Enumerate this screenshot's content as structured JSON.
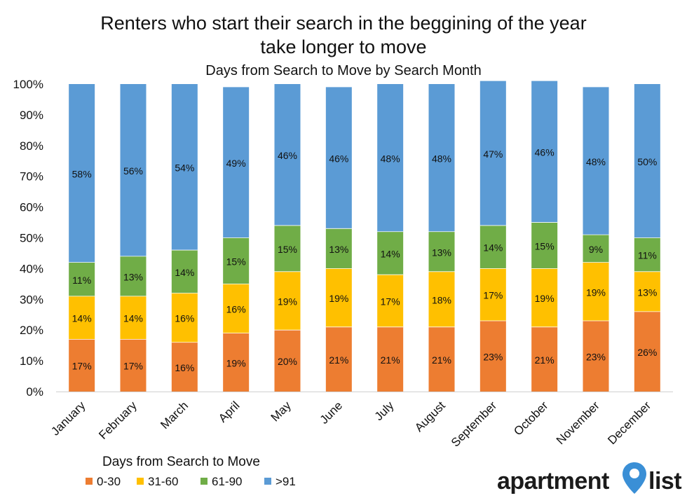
{
  "brand": {
    "name_part1": "apartment",
    "name_part2": "list",
    "pin_color": "#3a8fd6"
  },
  "chart_data": {
    "type": "bar",
    "stacked": true,
    "percent": true,
    "title_line1": "Renters who start their search in the beggining of the year",
    "title_line2": "take longer to move",
    "subtitle": "Days from Search to Move by Search Month",
    "legend_title": "Days from Search to Move",
    "legend_position": "bottom-left",
    "grid": false,
    "ylim": [
      0,
      100
    ],
    "y_ticks": [
      "0%",
      "10%",
      "20%",
      "30%",
      "40%",
      "50%",
      "60%",
      "70%",
      "80%",
      "90%",
      "100%"
    ],
    "categories": [
      "January",
      "February",
      "March",
      "April",
      "May",
      "June",
      "July",
      "August",
      "September",
      "October",
      "November",
      "December"
    ],
    "series": [
      {
        "name": "0-30",
        "color": "#ed7d31",
        "values": [
          17,
          17,
          16,
          19,
          20,
          21,
          21,
          21,
          23,
          21,
          23,
          26
        ],
        "labels": [
          "17%",
          "17%",
          "16%",
          "19%",
          "20%",
          "21%",
          "21%",
          "21%",
          "23%",
          "21%",
          "23%",
          "26%"
        ]
      },
      {
        "name": "31-60",
        "color": "#ffc000",
        "values": [
          14,
          14,
          16,
          16,
          19,
          19,
          17,
          18,
          17,
          19,
          19,
          13
        ],
        "labels": [
          "14%",
          "14%",
          "16%",
          "16%",
          "19%",
          "19%",
          "17%",
          "18%",
          "17%",
          "19%",
          "19%",
          "13%"
        ]
      },
      {
        "name": "61-90",
        "color": "#70ad47",
        "values": [
          11,
          13,
          14,
          15,
          15,
          13,
          14,
          13,
          14,
          15,
          9,
          11
        ],
        "labels": [
          "11%",
          "13%",
          "14%",
          "15%",
          "15%",
          "13%",
          "14%",
          "13%",
          "14%",
          "15%",
          "9%",
          "11%"
        ]
      },
      {
        "name": ">91",
        "color": "#5b9bd5",
        "values": [
          58,
          56,
          54,
          49,
          46,
          46,
          48,
          48,
          47,
          46,
          48,
          50
        ],
        "labels": [
          "58%",
          "56%",
          "54%",
          "49%",
          "46%",
          "46%",
          "48%",
          "48%",
          "47%",
          "46%",
          "48%",
          "50%"
        ]
      }
    ]
  }
}
